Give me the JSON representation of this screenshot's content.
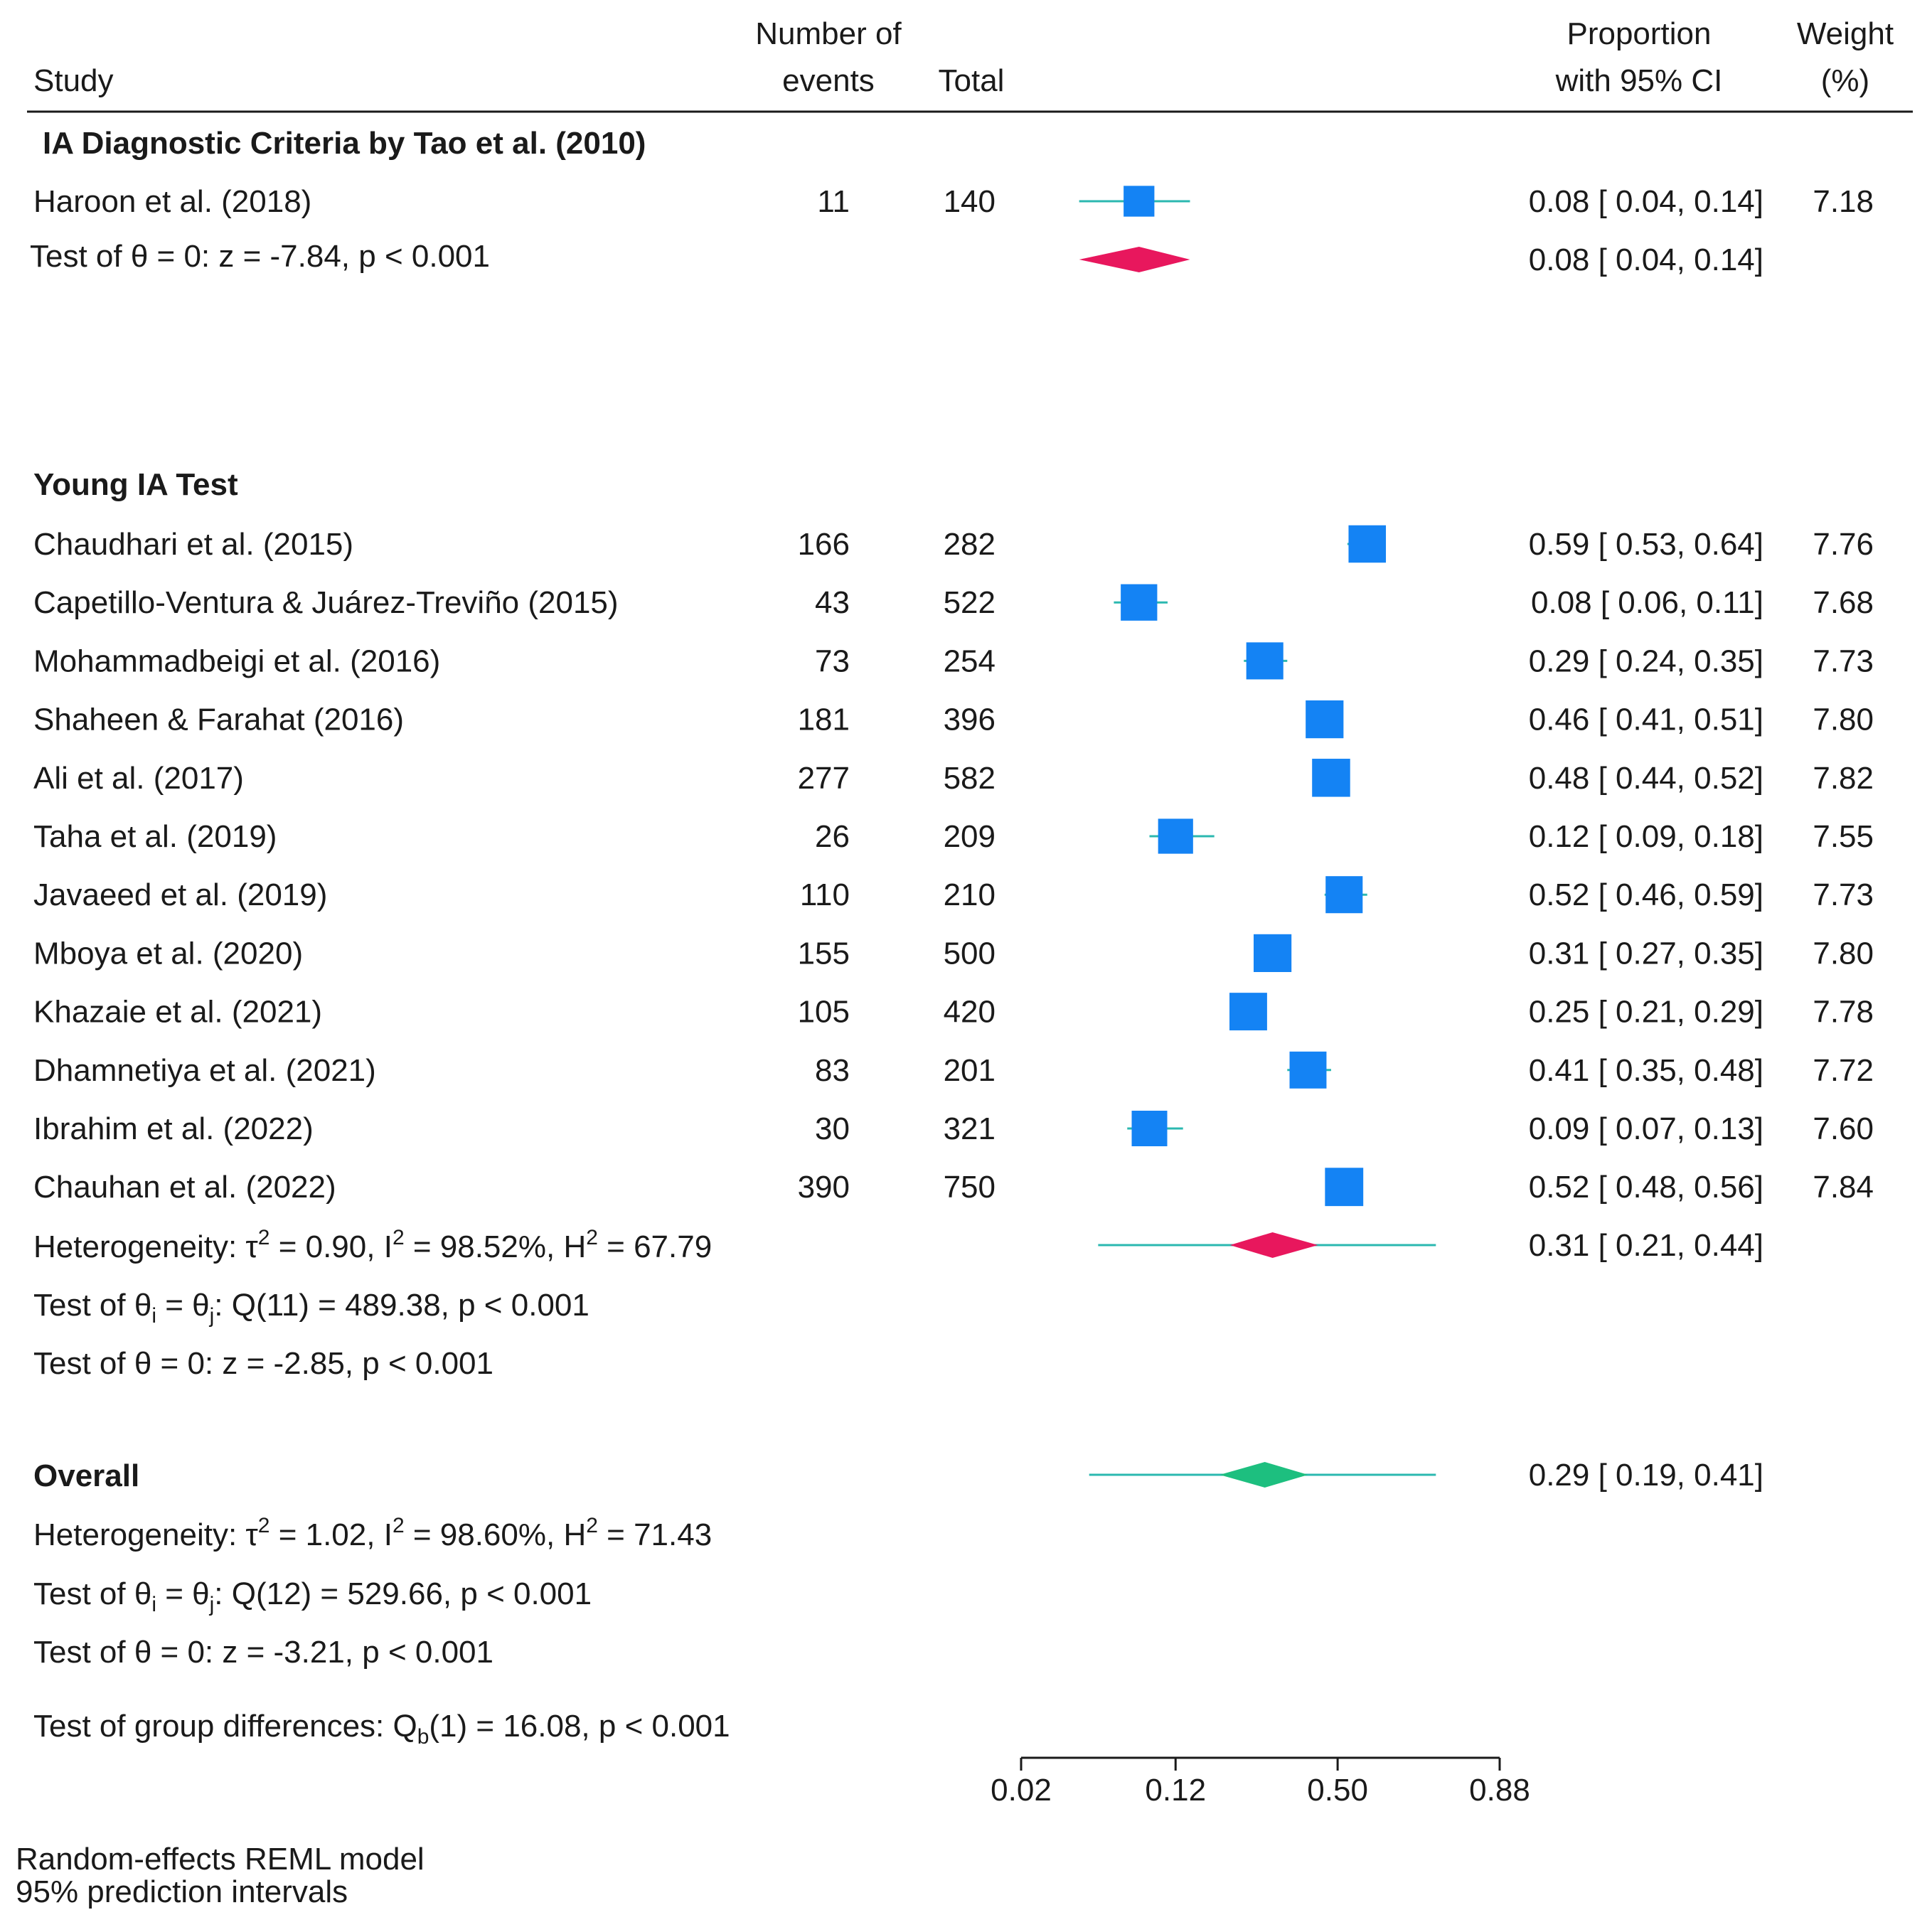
{
  "colors": {
    "study_marker": "#1483f4",
    "ci_line": "#2bb8b0",
    "group_diamond": "#e8175d",
    "overall_diamond": "#1dbf7f",
    "text": "#1a1a1a"
  },
  "header": {
    "study": "Study",
    "events_line1": "Number of",
    "events_line2": "events",
    "total": "Total",
    "prop_line1": "Proportion",
    "prop_line2": "with 95% CI",
    "weight_line1": "Weight",
    "weight_line2": "(%)"
  },
  "chart_data": {
    "type": "forest",
    "scale": "logit",
    "axis_ticks": [
      "0.02",
      "0.12",
      "0.50",
      "0.88"
    ],
    "axis_tick_values": [
      0.02,
      0.12,
      0.5,
      0.88
    ],
    "groups": [
      {
        "label": "IA Diagnostic Criteria by Tao et al. (2010)",
        "studies": [
          {
            "name": "Haroon et al. (2018)",
            "events": "11",
            "total": "140",
            "est": 0.08,
            "lo": 0.04,
            "hi": 0.14,
            "ci_text": "0.08 [ 0.04,  0.14]",
            "weight": "7.18"
          }
        ],
        "summary": {
          "est": 0.08,
          "lo": 0.04,
          "hi": 0.14,
          "ci_text": "0.08 [ 0.04,  0.14]"
        },
        "stats": [
          {
            "pre": "Test of θ = 0: z = -7.84, p < 0.001"
          }
        ]
      },
      {
        "label": "Young IA Test",
        "studies": [
          {
            "name": "Chaudhari et al. (2015)",
            "events": "166",
            "total": "282",
            "est": 0.59,
            "lo": 0.53,
            "hi": 0.64,
            "ci_text": "0.59 [ 0.53,  0.64]",
            "weight": "7.76"
          },
          {
            "name": "Capetillo-Ventura & Juárez-Treviño (2015)",
            "events": "43",
            "total": "522",
            "est": 0.08,
            "lo": 0.06,
            "hi": 0.11,
            "ci_text": "0.08 [ 0.06,  0.11]",
            "weight": "7.68"
          },
          {
            "name": "Mohammadbeigi et al. (2016)",
            "events": "73",
            "total": "254",
            "est": 0.29,
            "lo": 0.24,
            "hi": 0.35,
            "ci_text": "0.29 [ 0.24,  0.35]",
            "weight": "7.73"
          },
          {
            "name": "Shaheen & Farahat (2016)",
            "events": "181",
            "total": "396",
            "est": 0.46,
            "lo": 0.41,
            "hi": 0.51,
            "ci_text": "0.46 [ 0.41,  0.51]",
            "weight": "7.80"
          },
          {
            "name": "Ali et al. (2017)",
            "events": "277",
            "total": "582",
            "est": 0.48,
            "lo": 0.44,
            "hi": 0.52,
            "ci_text": "0.48 [ 0.44,  0.52]",
            "weight": "7.82"
          },
          {
            "name": "Taha et al. (2019)",
            "events": "26",
            "total": "209",
            "est": 0.12,
            "lo": 0.09,
            "hi": 0.18,
            "ci_text": "0.12 [ 0.09,  0.18]",
            "weight": "7.55"
          },
          {
            "name": "Javaeed et al. (2019)",
            "events": "110",
            "total": "210",
            "est": 0.52,
            "lo": 0.46,
            "hi": 0.59,
            "ci_text": "0.52 [ 0.46,  0.59]",
            "weight": "7.73"
          },
          {
            "name": "Mboya et al. (2020)",
            "events": "155",
            "total": "500",
            "est": 0.31,
            "lo": 0.27,
            "hi": 0.35,
            "ci_text": "0.31 [ 0.27,  0.35]",
            "weight": "7.80"
          },
          {
            "name": "Khazaie et al. (2021)",
            "events": "105",
            "total": "420",
            "est": 0.25,
            "lo": 0.21,
            "hi": 0.29,
            "ci_text": "0.25 [ 0.21,  0.29]",
            "weight": "7.78"
          },
          {
            "name": "Dhamnetiya et al. (2021)",
            "events": "83",
            "total": "201",
            "est": 0.41,
            "lo": 0.35,
            "hi": 0.48,
            "ci_text": "0.41 [ 0.35,  0.48]",
            "weight": "7.72"
          },
          {
            "name": "Ibrahim et al. (2022)",
            "events": "30",
            "total": "321",
            "est": 0.09,
            "lo": 0.07,
            "hi": 0.13,
            "ci_text": "0.09 [ 0.07,  0.13]",
            "weight": "7.60"
          },
          {
            "name": "Chauhan et al. (2022)",
            "events": "390",
            "total": "750",
            "est": 0.52,
            "lo": 0.48,
            "hi": 0.56,
            "ci_text": "0.52 [ 0.48,  0.56]",
            "weight": "7.84"
          }
        ],
        "summary": {
          "est": 0.31,
          "lo": 0.21,
          "hi": 0.44,
          "pi_lo": 0.05,
          "pi_hi": 0.77,
          "ci_text": "0.31 [ 0.21,  0.44]"
        },
        "stats": [
          {
            "pre": "Heterogeneity: τ",
            "sup": "2",
            "mid": " = 0.90, I",
            "sup2": "2",
            "mid2": " = 98.52%, H",
            "sup3": "2",
            "post": " = 67.79"
          },
          {
            "pre": "Test of θ",
            "sub": "i",
            "mid": " = θ",
            "sub2": "j",
            "post": ": Q(11) = 489.38, p < 0.001"
          },
          {
            "pre": "Test of θ = 0: z = -2.85, p < 0.001"
          }
        ]
      }
    ],
    "overall": {
      "label": "Overall",
      "est": 0.29,
      "lo": 0.19,
      "hi": 0.41,
      "pi_lo": 0.045,
      "pi_hi": 0.77,
      "ci_text": "0.29 [ 0.19,  0.41]",
      "stats": [
        {
          "pre": "Heterogeneity: τ",
          "sup": "2",
          "mid": " = 1.02, I",
          "sup2": "2",
          "mid2": " = 98.60%, H",
          "sup3": "2",
          "post": " = 71.43"
        },
        {
          "pre": "Test of θ",
          "sub": "i",
          "mid": " = θ",
          "sub2": "j",
          "post": ": Q(12) = 529.66, p < 0.001"
        },
        {
          "pre": "Test of θ = 0: z = -3.21, p < 0.001"
        }
      ]
    },
    "group_test": {
      "pre": "Test of group differences: Q",
      "sub": "b",
      "post": "(1) = 16.08, p < 0.001"
    },
    "footnotes": [
      "Random-effects REML model",
      "95% prediction intervals"
    ]
  }
}
